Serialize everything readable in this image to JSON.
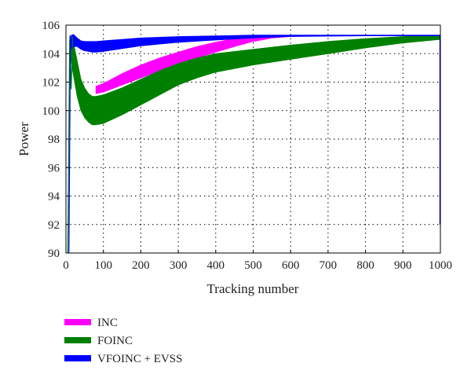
{
  "chart_data": {
    "type": "line",
    "xlabel": "Tracking number",
    "ylabel": "Power",
    "xlim": [
      0,
      1000
    ],
    "ylim": [
      90,
      106
    ],
    "xticks": [
      0,
      100,
      200,
      300,
      400,
      500,
      600,
      700,
      800,
      900,
      1000
    ],
    "yticks": [
      90,
      92,
      94,
      96,
      98,
      100,
      102,
      104,
      106
    ],
    "grid": true,
    "legend_position": "bottom-left, below plot",
    "series": [
      {
        "name": "INC",
        "color": "#ff00ff",
        "x": [
          80,
          100,
          150,
          200,
          250,
          300,
          350,
          400,
          450,
          500,
          550,
          600,
          700,
          800,
          900,
          1000
        ],
        "upper": [
          101.7,
          101.9,
          102.6,
          103.2,
          103.7,
          104.1,
          104.5,
          104.8,
          105.05,
          105.2,
          105.25,
          105.25,
          105.25,
          105.25,
          105.25,
          105.25
        ],
        "lower": [
          101.2,
          101.3,
          101.8,
          102.3,
          102.8,
          103.25,
          103.7,
          104.1,
          104.5,
          104.85,
          105.1,
          105.2,
          105.25,
          105.25,
          105.25,
          105.25
        ]
      },
      {
        "name": "FOINC",
        "color": "#008000",
        "x": [
          10,
          20,
          30,
          40,
          50,
          60,
          70,
          80,
          100,
          150,
          200,
          250,
          300,
          350,
          400,
          500,
          600,
          700,
          800,
          900,
          1000
        ],
        "upper": [
          105.2,
          104.8,
          103.5,
          102.2,
          101.6,
          101.2,
          101.0,
          101.0,
          101.1,
          101.6,
          102.2,
          102.8,
          103.3,
          103.7,
          104.0,
          104.3,
          104.6,
          104.85,
          105.05,
          105.2,
          105.25
        ],
        "lower": [
          104.0,
          102.5,
          101.0,
          100.0,
          99.5,
          99.2,
          99.0,
          99.0,
          99.1,
          99.7,
          100.4,
          101.1,
          101.8,
          102.3,
          102.7,
          103.2,
          103.6,
          104.0,
          104.4,
          104.75,
          105.0
        ]
      },
      {
        "name": "VFOINC + EVSS",
        "color": "#0000ff",
        "x": [
          15,
          20,
          30,
          40,
          50,
          60,
          70,
          80,
          100,
          150,
          200,
          300,
          400,
          500,
          600,
          800,
          1000
        ],
        "upper": [
          105.3,
          105.35,
          105.1,
          104.9,
          104.85,
          104.85,
          104.85,
          104.85,
          104.9,
          105.0,
          105.1,
          105.2,
          105.25,
          105.3,
          105.3,
          105.3,
          105.3
        ],
        "lower": [
          104.3,
          104.5,
          104.5,
          104.3,
          104.2,
          104.15,
          104.1,
          104.1,
          104.15,
          104.35,
          104.55,
          104.8,
          104.95,
          105.1,
          105.2,
          105.25,
          105.25
        ]
      }
    ]
  }
}
